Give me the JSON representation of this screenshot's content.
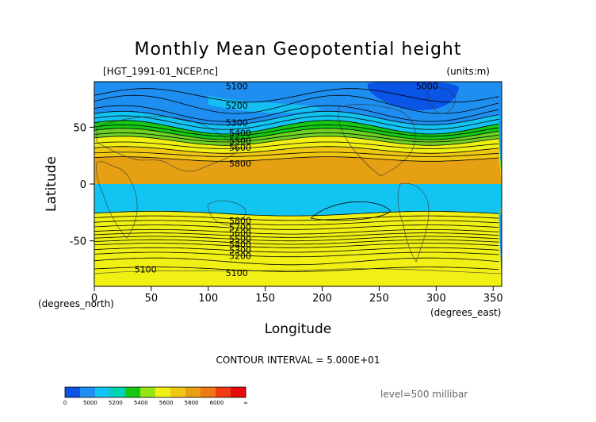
{
  "chart_data": {
    "type": "heatmap",
    "title": "Monthly Mean Geopotential height",
    "subtitle_left": "[HGT_1991-01_NCEP.nc]",
    "subtitle_right": "(units:m)",
    "xlabel": "Longitude",
    "ylabel": "Latitude",
    "x_units": "(degrees_east)",
    "y_units": "(degrees_north)",
    "xlim": [
      0,
      357.5
    ],
    "ylim": [
      -90,
      90
    ],
    "x_ticks": [
      "0",
      "50",
      "100",
      "150",
      "200",
      "250",
      "300",
      "350"
    ],
    "y_ticks": [
      "50",
      "0",
      "-50"
    ],
    "contour_interval": "CONTOUR INTERVAL = 5.000E+01",
    "level": "level=500 millibar",
    "contour_labels": [
      "5000",
      "5100",
      "5200",
      "5300",
      "5400",
      "5500",
      "5600",
      "5700",
      "5800"
    ],
    "colorbar_ticks": [
      "0",
      "5000",
      "5200",
      "5400",
      "5600",
      "5800",
      "6000",
      "∞"
    ],
    "colorbar_colors": [
      "#0a54e6",
      "#1e8ff0",
      "#12c4f2",
      "#00d2b4",
      "#14c814",
      "#96e614",
      "#f0f014",
      "#f0c814",
      "#e6a014",
      "#f07814",
      "#f03c14",
      "#e60a0a"
    ],
    "band_colors": {
      "lt5000": "#0a54e6",
      "5000-5200": "#1e8ff0",
      "5200-5400": "#12c4f2",
      "5400-5500": "#14c814",
      "5500-5600": "#6ed223",
      "5600-5700": "#f0f014",
      "5700-5800": "#f0c814",
      "ge5800": "#e6a014"
    },
    "grid": false,
    "legend": "colorbar bottom-left"
  }
}
